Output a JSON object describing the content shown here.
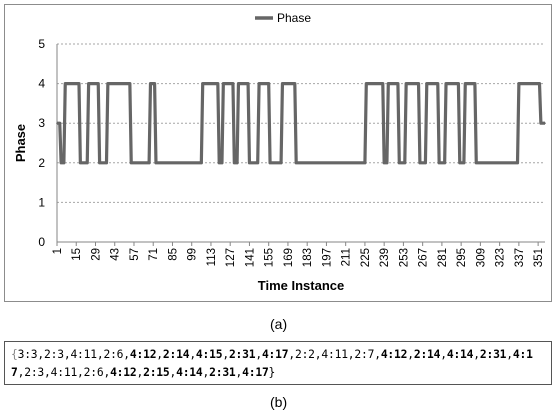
{
  "chart_data": {
    "type": "line",
    "title": "",
    "xlabel": "Time Instance",
    "ylabel": "Phase",
    "ylim": [
      0,
      5
    ],
    "yticks": [
      0,
      1,
      2,
      3,
      4,
      5
    ],
    "grid": "horizontal-dashed",
    "legend": "top-center",
    "series": [
      {
        "name": "Phase",
        "color": "#666666",
        "points": [
          [
            1,
            3
          ],
          [
            3,
            3
          ],
          [
            4,
            2
          ],
          [
            6,
            2
          ],
          [
            7,
            4
          ],
          [
            17,
            4
          ],
          [
            18,
            2
          ],
          [
            23,
            2
          ],
          [
            24,
            4
          ],
          [
            31,
            4
          ],
          [
            32,
            2
          ],
          [
            37,
            2
          ],
          [
            38,
            4
          ],
          [
            54,
            4
          ],
          [
            55,
            2
          ],
          [
            68,
            2
          ],
          [
            69,
            4
          ],
          [
            72,
            4
          ],
          [
            73,
            2
          ],
          [
            106,
            2
          ],
          [
            107,
            4
          ],
          [
            118,
            4
          ],
          [
            119,
            2
          ],
          [
            121,
            2
          ],
          [
            122,
            4
          ],
          [
            129,
            4
          ],
          [
            130,
            2
          ],
          [
            132,
            2
          ],
          [
            133,
            4
          ],
          [
            140,
            4
          ],
          [
            141,
            2
          ],
          [
            147,
            2
          ],
          [
            148,
            4
          ],
          [
            155,
            4
          ],
          [
            156,
            2
          ],
          [
            164,
            2
          ],
          [
            165,
            4
          ],
          [
            174,
            4
          ],
          [
            175,
            2
          ],
          [
            225,
            2
          ],
          [
            226,
            4
          ],
          [
            238,
            4
          ],
          [
            239,
            2
          ],
          [
            241,
            2
          ],
          [
            242,
            4
          ],
          [
            249,
            4
          ],
          [
            250,
            2
          ],
          [
            254,
            2
          ],
          [
            255,
            4
          ],
          [
            264,
            4
          ],
          [
            265,
            2
          ],
          [
            269,
            2
          ],
          [
            270,
            4
          ],
          [
            278,
            4
          ],
          [
            279,
            2
          ],
          [
            283,
            2
          ],
          [
            284,
            4
          ],
          [
            293,
            4
          ],
          [
            294,
            2
          ],
          [
            297,
            2
          ],
          [
            298,
            4
          ],
          [
            305,
            4
          ],
          [
            306,
            2
          ],
          [
            336,
            2
          ],
          [
            337,
            4
          ],
          [
            352,
            4
          ],
          [
            353,
            3
          ],
          [
            356,
            3
          ]
        ]
      }
    ],
    "x_tick_labels": [
      1,
      15,
      29,
      43,
      57,
      71,
      85,
      99,
      113,
      127,
      141,
      155,
      169,
      183,
      197,
      211,
      225,
      239,
      253,
      267,
      281,
      295,
      309,
      323,
      337,
      351
    ],
    "xlim": [
      1,
      356
    ]
  },
  "captions": {
    "a": "(a)",
    "b": "(b)"
  },
  "sequence": {
    "open": "{",
    "close": "}",
    "tokens": [
      {
        "t": "3:3",
        "bold": false
      },
      {
        "t": "2:3",
        "bold": false
      },
      {
        "t": "4:11",
        "bold": false
      },
      {
        "t": "2:6",
        "bold": false
      },
      {
        "t": "4:12",
        "bold": true
      },
      {
        "t": "2:14",
        "bold": true
      },
      {
        "t": "4:15",
        "bold": true
      },
      {
        "t": "2:31",
        "bold": true
      },
      {
        "t": "4:17",
        "bold": true
      },
      {
        "t": "2:2",
        "bold": false
      },
      {
        "t": "4:11",
        "bold": false
      },
      {
        "t": "2:7",
        "bold": false
      },
      {
        "t": "4:12",
        "bold": true
      },
      {
        "t": "2:14",
        "bold": true
      },
      {
        "t": "4:14",
        "bold": true
      },
      {
        "t": "2:31",
        "bold": true
      },
      {
        "t": "4:17",
        "bold": true
      },
      {
        "t": "2:3",
        "bold": false
      },
      {
        "t": "4:11",
        "bold": false
      },
      {
        "t": "2:6",
        "bold": false
      },
      {
        "t": "4:12",
        "bold": true
      },
      {
        "t": "2:15",
        "bold": true
      },
      {
        "t": "4:14",
        "bold": true
      },
      {
        "t": "2:31",
        "bold": true
      },
      {
        "t": "4:17",
        "bold": true
      }
    ]
  }
}
